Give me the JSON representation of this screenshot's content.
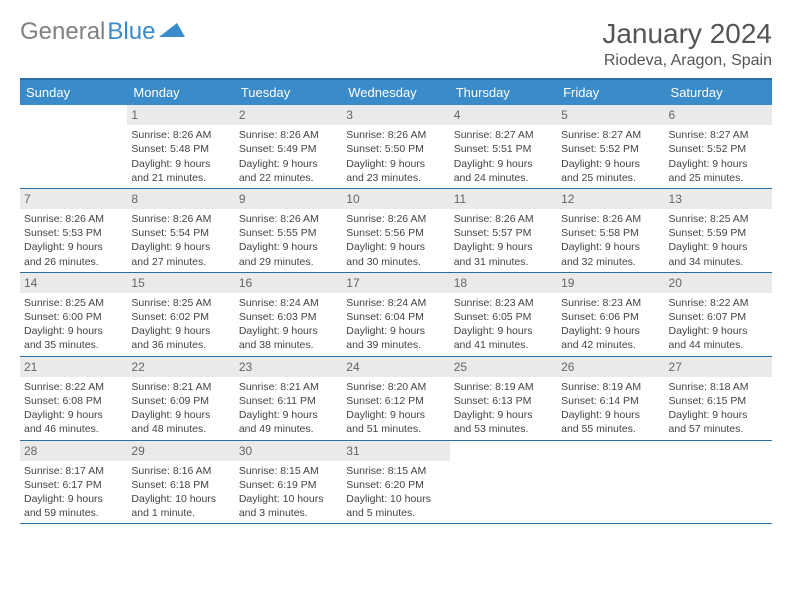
{
  "logo": {
    "part1": "General",
    "part2": "Blue"
  },
  "title": "January 2024",
  "location": "Riodeva, Aragon, Spain",
  "dayHeaders": [
    "Sunday",
    "Monday",
    "Tuesday",
    "Wednesday",
    "Thursday",
    "Friday",
    "Saturday"
  ],
  "colors": {
    "headerBg": "#3a8bc9",
    "border": "#2a6fa8",
    "dayNumBg": "#eaeaea",
    "text": "#444",
    "titleText": "#555"
  },
  "typography": {
    "monthFont": 28,
    "locFont": 16,
    "dayHdrFont": 13,
    "cellFont": 10.5,
    "dayNumFont": 12
  },
  "weeks": [
    [
      {
        "blank": true
      },
      {
        "n": "1",
        "sr": "Sunrise: 8:26 AM",
        "ss": "Sunset: 5:48 PM",
        "d1": "Daylight: 9 hours",
        "d2": "and 21 minutes."
      },
      {
        "n": "2",
        "sr": "Sunrise: 8:26 AM",
        "ss": "Sunset: 5:49 PM",
        "d1": "Daylight: 9 hours",
        "d2": "and 22 minutes."
      },
      {
        "n": "3",
        "sr": "Sunrise: 8:26 AM",
        "ss": "Sunset: 5:50 PM",
        "d1": "Daylight: 9 hours",
        "d2": "and 23 minutes."
      },
      {
        "n": "4",
        "sr": "Sunrise: 8:27 AM",
        "ss": "Sunset: 5:51 PM",
        "d1": "Daylight: 9 hours",
        "d2": "and 24 minutes."
      },
      {
        "n": "5",
        "sr": "Sunrise: 8:27 AM",
        "ss": "Sunset: 5:52 PM",
        "d1": "Daylight: 9 hours",
        "d2": "and 25 minutes."
      },
      {
        "n": "6",
        "sr": "Sunrise: 8:27 AM",
        "ss": "Sunset: 5:52 PM",
        "d1": "Daylight: 9 hours",
        "d2": "and 25 minutes."
      }
    ],
    [
      {
        "n": "7",
        "sr": "Sunrise: 8:26 AM",
        "ss": "Sunset: 5:53 PM",
        "d1": "Daylight: 9 hours",
        "d2": "and 26 minutes."
      },
      {
        "n": "8",
        "sr": "Sunrise: 8:26 AM",
        "ss": "Sunset: 5:54 PM",
        "d1": "Daylight: 9 hours",
        "d2": "and 27 minutes."
      },
      {
        "n": "9",
        "sr": "Sunrise: 8:26 AM",
        "ss": "Sunset: 5:55 PM",
        "d1": "Daylight: 9 hours",
        "d2": "and 29 minutes."
      },
      {
        "n": "10",
        "sr": "Sunrise: 8:26 AM",
        "ss": "Sunset: 5:56 PM",
        "d1": "Daylight: 9 hours",
        "d2": "and 30 minutes."
      },
      {
        "n": "11",
        "sr": "Sunrise: 8:26 AM",
        "ss": "Sunset: 5:57 PM",
        "d1": "Daylight: 9 hours",
        "d2": "and 31 minutes."
      },
      {
        "n": "12",
        "sr": "Sunrise: 8:26 AM",
        "ss": "Sunset: 5:58 PM",
        "d1": "Daylight: 9 hours",
        "d2": "and 32 minutes."
      },
      {
        "n": "13",
        "sr": "Sunrise: 8:25 AM",
        "ss": "Sunset: 5:59 PM",
        "d1": "Daylight: 9 hours",
        "d2": "and 34 minutes."
      }
    ],
    [
      {
        "n": "14",
        "sr": "Sunrise: 8:25 AM",
        "ss": "Sunset: 6:00 PM",
        "d1": "Daylight: 9 hours",
        "d2": "and 35 minutes."
      },
      {
        "n": "15",
        "sr": "Sunrise: 8:25 AM",
        "ss": "Sunset: 6:02 PM",
        "d1": "Daylight: 9 hours",
        "d2": "and 36 minutes."
      },
      {
        "n": "16",
        "sr": "Sunrise: 8:24 AM",
        "ss": "Sunset: 6:03 PM",
        "d1": "Daylight: 9 hours",
        "d2": "and 38 minutes."
      },
      {
        "n": "17",
        "sr": "Sunrise: 8:24 AM",
        "ss": "Sunset: 6:04 PM",
        "d1": "Daylight: 9 hours",
        "d2": "and 39 minutes."
      },
      {
        "n": "18",
        "sr": "Sunrise: 8:23 AM",
        "ss": "Sunset: 6:05 PM",
        "d1": "Daylight: 9 hours",
        "d2": "and 41 minutes."
      },
      {
        "n": "19",
        "sr": "Sunrise: 8:23 AM",
        "ss": "Sunset: 6:06 PM",
        "d1": "Daylight: 9 hours",
        "d2": "and 42 minutes."
      },
      {
        "n": "20",
        "sr": "Sunrise: 8:22 AM",
        "ss": "Sunset: 6:07 PM",
        "d1": "Daylight: 9 hours",
        "d2": "and 44 minutes."
      }
    ],
    [
      {
        "n": "21",
        "sr": "Sunrise: 8:22 AM",
        "ss": "Sunset: 6:08 PM",
        "d1": "Daylight: 9 hours",
        "d2": "and 46 minutes."
      },
      {
        "n": "22",
        "sr": "Sunrise: 8:21 AM",
        "ss": "Sunset: 6:09 PM",
        "d1": "Daylight: 9 hours",
        "d2": "and 48 minutes."
      },
      {
        "n": "23",
        "sr": "Sunrise: 8:21 AM",
        "ss": "Sunset: 6:11 PM",
        "d1": "Daylight: 9 hours",
        "d2": "and 49 minutes."
      },
      {
        "n": "24",
        "sr": "Sunrise: 8:20 AM",
        "ss": "Sunset: 6:12 PM",
        "d1": "Daylight: 9 hours",
        "d2": "and 51 minutes."
      },
      {
        "n": "25",
        "sr": "Sunrise: 8:19 AM",
        "ss": "Sunset: 6:13 PM",
        "d1": "Daylight: 9 hours",
        "d2": "and 53 minutes."
      },
      {
        "n": "26",
        "sr": "Sunrise: 8:19 AM",
        "ss": "Sunset: 6:14 PM",
        "d1": "Daylight: 9 hours",
        "d2": "and 55 minutes."
      },
      {
        "n": "27",
        "sr": "Sunrise: 8:18 AM",
        "ss": "Sunset: 6:15 PM",
        "d1": "Daylight: 9 hours",
        "d2": "and 57 minutes."
      }
    ],
    [
      {
        "n": "28",
        "sr": "Sunrise: 8:17 AM",
        "ss": "Sunset: 6:17 PM",
        "d1": "Daylight: 9 hours",
        "d2": "and 59 minutes."
      },
      {
        "n": "29",
        "sr": "Sunrise: 8:16 AM",
        "ss": "Sunset: 6:18 PM",
        "d1": "Daylight: 10 hours",
        "d2": "and 1 minute."
      },
      {
        "n": "30",
        "sr": "Sunrise: 8:15 AM",
        "ss": "Sunset: 6:19 PM",
        "d1": "Daylight: 10 hours",
        "d2": "and 3 minutes."
      },
      {
        "n": "31",
        "sr": "Sunrise: 8:15 AM",
        "ss": "Sunset: 6:20 PM",
        "d1": "Daylight: 10 hours",
        "d2": "and 5 minutes."
      },
      {
        "blank": true
      },
      {
        "blank": true
      },
      {
        "blank": true
      }
    ]
  ]
}
